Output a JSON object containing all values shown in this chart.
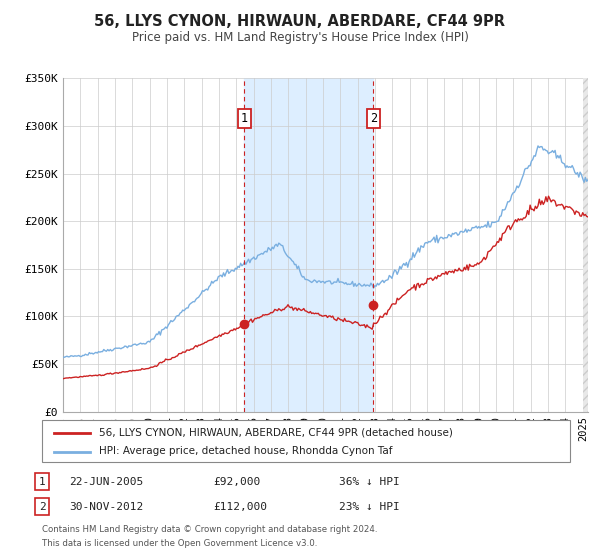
{
  "title": "56, LLYS CYNON, HIRWAUN, ABERDARE, CF44 9PR",
  "subtitle": "Price paid vs. HM Land Registry's House Price Index (HPI)",
  "background_color": "#ffffff",
  "plot_bg_color": "#ffffff",
  "highlight_bg_color": "#ddeeff",
  "ylim": [
    0,
    350000
  ],
  "xlim_start": 1995.0,
  "xlim_end": 2025.3,
  "yticks": [
    0,
    50000,
    100000,
    150000,
    200000,
    250000,
    300000,
    350000
  ],
  "ytick_labels": [
    "£0",
    "£50K",
    "£100K",
    "£150K",
    "£200K",
    "£250K",
    "£300K",
    "£350K"
  ],
  "xticks": [
    1995,
    1996,
    1997,
    1998,
    1999,
    2000,
    2001,
    2002,
    2003,
    2004,
    2005,
    2006,
    2007,
    2008,
    2009,
    2010,
    2011,
    2012,
    2013,
    2014,
    2015,
    2016,
    2017,
    2018,
    2019,
    2020,
    2021,
    2022,
    2023,
    2024,
    2025
  ],
  "marker1_x": 2005.47,
  "marker1_y": 92000,
  "marker1_label": "1",
  "marker1_date": "22-JUN-2005",
  "marker1_price": "£92,000",
  "marker1_hpi": "36% ↓ HPI",
  "marker2_x": 2012.92,
  "marker2_y": 112000,
  "marker2_label": "2",
  "marker2_date": "30-NOV-2012",
  "marker2_price": "£112,000",
  "marker2_hpi": "23% ↓ HPI",
  "highlight_x_start": 2005.47,
  "highlight_x_end": 2012.92,
  "red_line_color": "#cc2222",
  "blue_line_color": "#7aafe0",
  "marker_box_color": "#cc2222",
  "legend1_label": "56, LLYS CYNON, HIRWAUN, ABERDARE, CF44 9PR (detached house)",
  "legend2_label": "HPI: Average price, detached house, Rhondda Cynon Taf",
  "footnote1": "Contains HM Land Registry data © Crown copyright and database right 2024.",
  "footnote2": "This data is licensed under the Open Government Licence v3.0."
}
